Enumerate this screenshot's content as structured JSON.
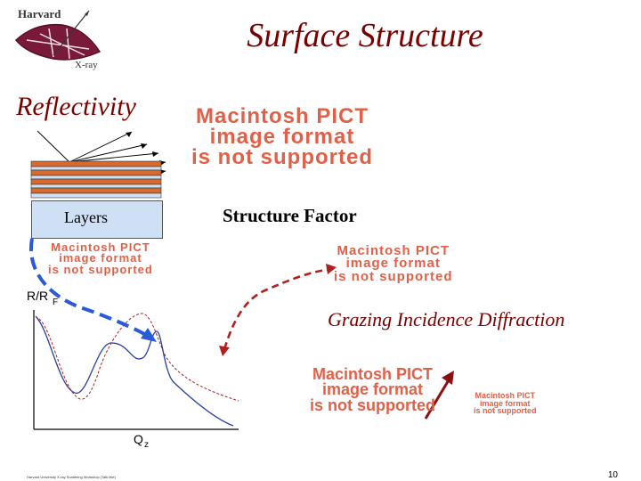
{
  "slide": {
    "title": "Surface Structure",
    "reflectivity_heading": "Reflectivity",
    "layers_label": "Layers",
    "structure_factor_label": "Structure Factor",
    "gid_label": "Grazing Incidence Diffraction",
    "footer_text": "Harvard University X-ray Scattering Workshop (Talk title)",
    "page_number": "10"
  },
  "logo": {
    "top_text": "Harvard",
    "bottom_text": "X-ray"
  },
  "pict_placeholder": {
    "line1": "Macintosh PICT",
    "line2": "image format",
    "line3": "is not supported"
  },
  "plot": {
    "y_axis_label": "R/R",
    "y_axis_sub": "F",
    "x_axis_label": "Q",
    "x_axis_sub": "z"
  },
  "colors": {
    "title": "#7a0000",
    "pict_text": "#e06048",
    "layer_orange": "#d86a2e",
    "layer_blue": "#cfe0f4",
    "arrow_blue": "#2a5bd7",
    "arrow_red": "#b02020",
    "curve_blue": "#2a3fa0",
    "curve_red": "#b02020"
  }
}
